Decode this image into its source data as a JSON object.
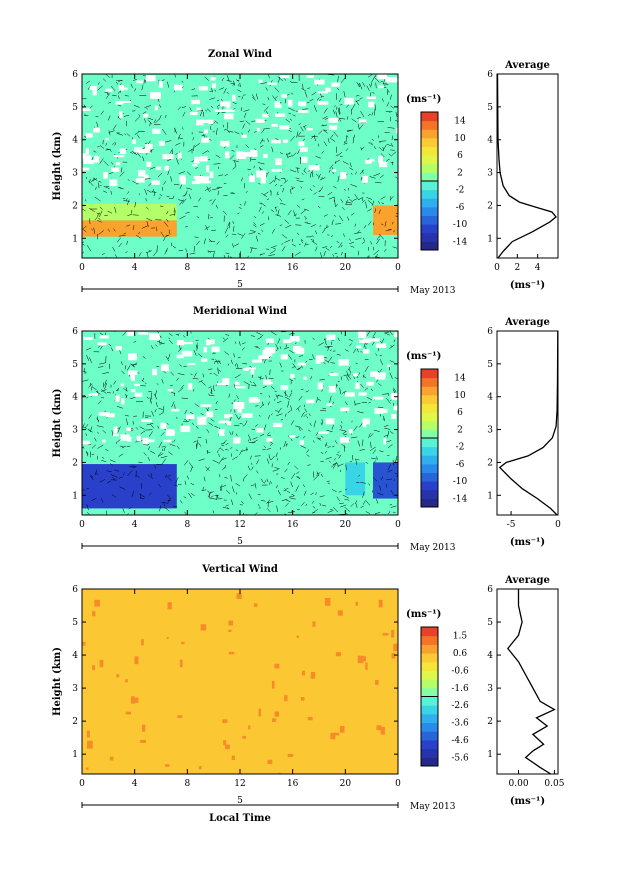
{
  "chart_data": [
    {
      "type": "heatmap",
      "title": "Zonal Wind",
      "ylabel": "Height (km)",
      "unit": "(ms⁻¹)",
      "x_ticks": [
        "0",
        "4",
        "8",
        "12",
        "16",
        "20",
        "0"
      ],
      "x_range": [
        0,
        24
      ],
      "date_tick": "5",
      "date_label": "May 2013",
      "y_ticks": [
        "1",
        "2",
        "3",
        "4",
        "5",
        "6"
      ],
      "ylim": [
        0.4,
        6
      ],
      "colorbar_ticks": [
        "14",
        "10",
        "6",
        "2",
        "-2",
        "-6",
        "-10",
        "-14"
      ],
      "colorbar_range": [
        -16,
        16
      ],
      "regions": [
        {
          "x": [
            0,
            7.2
          ],
          "y": [
            1.05,
            1.55
          ],
          "value": 11
        },
        {
          "x": [
            22.1,
            24
          ],
          "y": [
            1.1,
            2.0
          ],
          "value": 11
        },
        {
          "x": [
            0,
            7.2
          ],
          "y": [
            1.55,
            2.05
          ],
          "value": 3
        },
        {
          "x": [
            7.2,
            22
          ],
          "y": [
            0.4,
            6
          ],
          "value": 0
        }
      ],
      "average_profile": {
        "title": "Average",
        "xlabel": "(ms⁻¹)",
        "x_ticks": [
          "0",
          "2",
          "4"
        ],
        "xlim": [
          0,
          6
        ],
        "points": [
          [
            0.1,
            0.4
          ],
          [
            0.6,
            0.6
          ],
          [
            1.5,
            0.9
          ],
          [
            3.5,
            1.2
          ],
          [
            5.2,
            1.5
          ],
          [
            5.8,
            1.65
          ],
          [
            5.4,
            1.8
          ],
          [
            3.8,
            1.95
          ],
          [
            2.2,
            2.1
          ],
          [
            1.2,
            2.3
          ],
          [
            0.6,
            2.6
          ],
          [
            0.3,
            3.0
          ],
          [
            0.2,
            3.4
          ],
          [
            0.1,
            4.0
          ],
          [
            0.05,
            6.0
          ]
        ]
      }
    },
    {
      "type": "heatmap",
      "title": "Meridional Wind",
      "ylabel": "Height (km)",
      "unit": "(ms⁻¹)",
      "x_ticks": [
        "0",
        "4",
        "8",
        "12",
        "16",
        "20",
        "0"
      ],
      "x_range": [
        0,
        24
      ],
      "date_tick": "5",
      "date_label": "May 2013",
      "y_ticks": [
        "1",
        "2",
        "3",
        "4",
        "5",
        "6"
      ],
      "ylim": [
        0.4,
        6
      ],
      "colorbar_ticks": [
        "14",
        "10",
        "6",
        "2",
        "-2",
        "-6",
        "-10",
        "-14"
      ],
      "colorbar_range": [
        -16,
        16
      ],
      "regions": [
        {
          "x": [
            0,
            7.2
          ],
          "y": [
            0.6,
            1.95
          ],
          "value": -11
        },
        {
          "x": [
            22.1,
            24
          ],
          "y": [
            0.9,
            2.0
          ],
          "value": -10
        },
        {
          "x": [
            20,
            21.5
          ],
          "y": [
            1.0,
            2.0
          ],
          "value": -3
        },
        {
          "x": [
            7.2,
            22
          ],
          "y": [
            0.4,
            6
          ],
          "value": 0
        }
      ],
      "average_profile": {
        "title": "Average",
        "xlabel": "(ms⁻¹)",
        "x_ticks": [
          "-5",
          "0"
        ],
        "xlim": [
          -6.5,
          0
        ],
        "points": [
          [
            -0.1,
            0.4
          ],
          [
            -0.8,
            0.6
          ],
          [
            -2.2,
            0.9
          ],
          [
            -3.8,
            1.2
          ],
          [
            -5.0,
            1.5
          ],
          [
            -6.2,
            1.85
          ],
          [
            -5.5,
            2.0
          ],
          [
            -3.2,
            2.2
          ],
          [
            -1.6,
            2.45
          ],
          [
            -0.6,
            2.75
          ],
          [
            -0.2,
            3.1
          ],
          [
            -0.1,
            3.6
          ],
          [
            -0.05,
            4.5
          ],
          [
            -0.02,
            6.0
          ]
        ]
      }
    },
    {
      "type": "heatmap",
      "title": "Vertical Wind",
      "xlabel": "Local Time",
      "ylabel": "Height (km)",
      "unit": "(ms⁻¹)",
      "x_ticks": [
        "0",
        "4",
        "8",
        "12",
        "16",
        "20",
        "0"
      ],
      "x_range": [
        0,
        24
      ],
      "date_tick": "5",
      "date_label": "May 2013",
      "y_ticks": [
        "1",
        "2",
        "3",
        "4",
        "5",
        "6"
      ],
      "ylim": [
        0.4,
        6
      ],
      "colorbar_ticks": [
        "1.5",
        "0.6",
        "-0.6",
        "-1.6",
        "-2.6",
        "-3.6",
        "-4.6",
        "-5.6"
      ],
      "colorbar_range": [
        -6,
        2
      ],
      "regions": [
        {
          "x": [
            0,
            24
          ],
          "y": [
            0.4,
            6
          ],
          "value": 0.3
        }
      ],
      "average_profile": {
        "title": "Average",
        "xlabel": "(ms⁻¹)",
        "x_ticks": [
          "0.00",
          "0.05"
        ],
        "xlim": [
          -0.03,
          0.055
        ],
        "points": [
          [
            0.045,
            0.4
          ],
          [
            0.03,
            0.6
          ],
          [
            0.01,
            0.9
          ],
          [
            0.02,
            1.1
          ],
          [
            0.035,
            1.3
          ],
          [
            0.02,
            1.6
          ],
          [
            0.04,
            1.85
          ],
          [
            0.025,
            2.1
          ],
          [
            0.05,
            2.35
          ],
          [
            0.03,
            2.6
          ],
          [
            0.02,
            3.0
          ],
          [
            0.01,
            3.4
          ],
          [
            0.0,
            3.8
          ],
          [
            -0.015,
            4.2
          ],
          [
            0.0,
            4.6
          ],
          [
            0.005,
            5.0
          ],
          [
            0.0,
            5.5
          ],
          [
            0.0,
            6.0
          ]
        ]
      }
    }
  ]
}
